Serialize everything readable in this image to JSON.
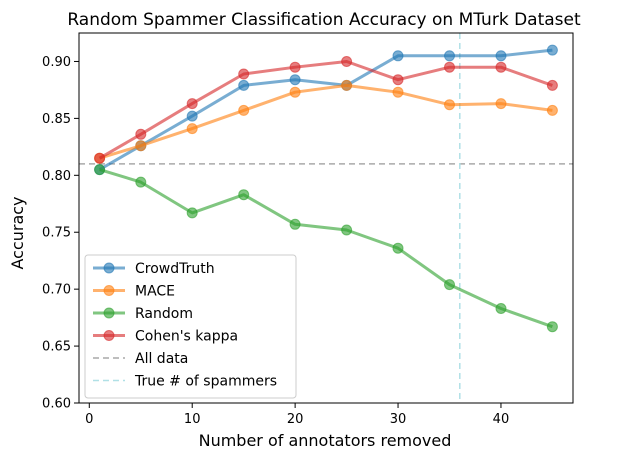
{
  "chart_data": {
    "type": "line",
    "title": "Random Spammer Classification Accuracy on MTurk Dataset",
    "xlabel": "Number of annotators removed",
    "ylabel": "Accuracy",
    "xlim": [
      -1,
      47
    ],
    "ylim": [
      0.6,
      0.925
    ],
    "xticks": [
      0,
      10,
      20,
      30,
      40
    ],
    "yticks": [
      0.6,
      0.65,
      0.7,
      0.75,
      0.8,
      0.85,
      0.9
    ],
    "ytick_labels": [
      "0.60",
      "0.65",
      "0.70",
      "0.75",
      "0.80",
      "0.85",
      "0.90"
    ],
    "grid": false,
    "legend_position": "lower-left",
    "x": [
      1,
      5,
      10,
      15,
      20,
      25,
      30,
      35,
      40,
      45
    ],
    "series": [
      {
        "name": "CrowdTruth",
        "color": "#1f77b4",
        "values": [
          0.805,
          0.826,
          0.852,
          0.879,
          0.884,
          0.879,
          0.905,
          0.905,
          0.905,
          0.91
        ]
      },
      {
        "name": "MACE",
        "color": "#ff7f0e",
        "values": [
          0.815,
          0.826,
          0.841,
          0.857,
          0.873,
          0.879,
          0.873,
          0.862,
          0.863,
          0.857
        ]
      },
      {
        "name": "Random",
        "color": "#2ca02c",
        "values": [
          0.805,
          0.794,
          0.767,
          0.783,
          0.757,
          0.752,
          0.736,
          0.704,
          0.683,
          0.667
        ]
      },
      {
        "name": "Cohen's kappa",
        "color": "#d62728",
        "values": [
          0.815,
          0.836,
          0.863,
          0.889,
          0.895,
          0.9,
          0.884,
          0.895,
          0.895,
          0.879
        ]
      }
    ],
    "reference_lines": [
      {
        "name": "All data",
        "orientation": "horizontal",
        "value": 0.81,
        "color": "#a9a9a9"
      },
      {
        "name": "True # of spammers",
        "orientation": "vertical",
        "value": 36,
        "color": "#b0e0e6"
      }
    ]
  }
}
